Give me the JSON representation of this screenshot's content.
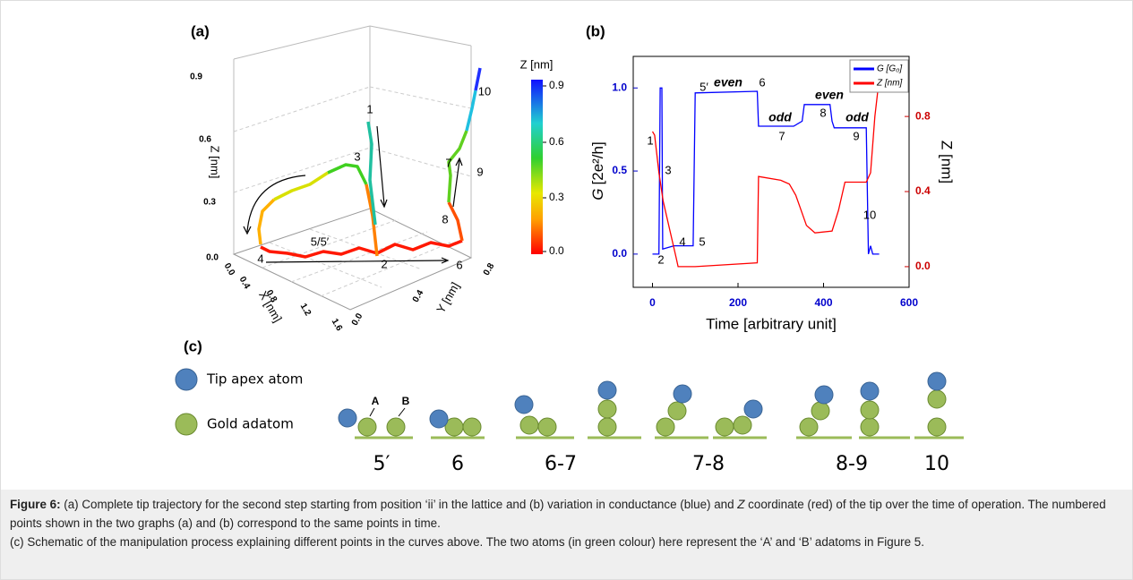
{
  "panel_a": {
    "label": "(a)",
    "z_axis_label": "Z [nm]",
    "x_axis_label": "X [nm]",
    "y_axis_label": "Y [nm]",
    "z_ticks": [
      "0.0",
      "0.3",
      "0.6",
      "0.9"
    ],
    "x_ticks": [
      "0.0",
      "0.4",
      "0.8",
      "1.2",
      "1.6"
    ],
    "y_ticks": [
      "0.0",
      "0.4",
      "0.8"
    ],
    "colorbar_label": "Z [nm]",
    "colorbar_ticks": [
      "0.0",
      "0.3",
      "0.6",
      "0.9"
    ],
    "points": [
      "1",
      "2",
      "3",
      "4",
      "5/5′",
      "6",
      "7",
      "8",
      "9",
      "10"
    ]
  },
  "chart_data": {
    "type": "line",
    "label": "(b)",
    "x_label": "Time [arbitrary unit]",
    "y_label_symbol": "G",
    "y_label_unit": "[2e²/h]",
    "y2_label": "Z [nm]",
    "xlim": [
      -45,
      600
    ],
    "xticks": [
      0,
      200,
      400,
      600
    ],
    "ylim": [
      -0.2,
      1.19
    ],
    "yticks": [
      {
        "value": 0,
        "label": "0.0"
      },
      0.5,
      {
        "value": 1,
        "label": "1.0"
      }
    ],
    "y2lim": [
      -0.11,
      1.12
    ],
    "y2ticks": [
      {
        "value": 0,
        "label": "0.0"
      },
      0.4,
      0.8
    ],
    "series": [
      {
        "name": "G [G₀]",
        "color": "#0000ff",
        "x": [
          0,
          15,
          18,
          22,
          24,
          50,
          95,
          100,
          245,
          248,
          330,
          350,
          355,
          415,
          420,
          425,
          500,
          505,
          510,
          515,
          530
        ],
        "values": [
          0,
          0,
          1.0,
          1.0,
          0.03,
          0.05,
          0.05,
          0.97,
          0.98,
          0.77,
          0.77,
          0.8,
          0.9,
          0.9,
          0.8,
          0.76,
          0.76,
          0,
          0.05,
          0,
          0
        ]
      },
      {
        "name": "Z [nm]",
        "color": "#ff0000",
        "axis": "y2",
        "x": [
          0,
          5,
          15,
          25,
          40,
          55,
          60,
          100,
          245,
          248,
          300,
          320,
          335,
          360,
          380,
          420,
          435,
          450,
          500,
          510,
          520,
          530
        ],
        "values": [
          0.72,
          0.7,
          0.5,
          0.35,
          0.2,
          0.05,
          0,
          0,
          0.02,
          0.48,
          0.46,
          0.44,
          0.38,
          0.22,
          0.18,
          0.19,
          0.3,
          0.45,
          0.45,
          0.5,
          0.8,
          1.0
        ]
      }
    ],
    "annotations": [
      "1",
      "2",
      "3",
      "4",
      "5",
      "5′",
      "6",
      "7",
      "8",
      "9",
      "10"
    ],
    "phase_labels": [
      "even",
      "odd",
      "even",
      "odd"
    ]
  },
  "panel_c": {
    "label": "(c)",
    "legend": [
      "Tip apex atom",
      "Gold adatom"
    ],
    "atom_labels": [
      "A",
      "B"
    ],
    "steps": [
      "5′",
      "6",
      "6-7",
      "7-8",
      "8-9",
      "10"
    ]
  },
  "caption": {
    "label": "Figure 6:",
    "p1": [
      " (a) Complete tip trajectory for the second step starting from position ‘ii’ in the lattice and (b) variation in conductance (blue) and ",
      "Z",
      " coordinate (red) of the tip over the time of operation. The numbered points shown in the two graphs (a) and (b) correspond to the same points in time."
    ],
    "p2": "(c) Schematic of the manipulation process explaining different points in the curves above. The two atoms (in green colour) here represent the ‘A’ and ‘B’ adatoms in Figure 5."
  }
}
